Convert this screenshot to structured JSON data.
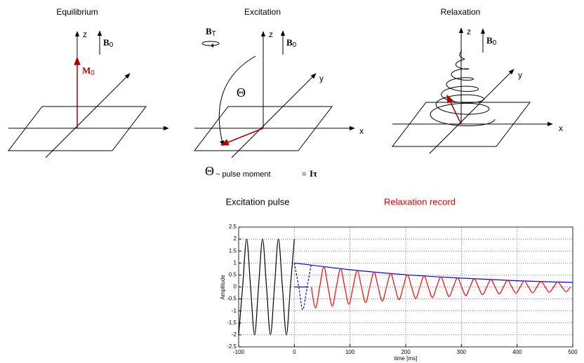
{
  "panels": [
    {
      "title": "Equilibrium",
      "axes": {
        "z": "z"
      },
      "field": {
        "symbol": "B",
        "subscript": "0"
      },
      "magnetization": {
        "symbol": "M",
        "subscript": "0"
      }
    },
    {
      "title": "Excitation",
      "axes": {
        "x": "x",
        "y": "y",
        "z": "z"
      },
      "field": {
        "symbol": "B",
        "subscript": "0"
      },
      "pulse_field": {
        "symbol": "B",
        "subscript": "T"
      },
      "angle": "Θ"
    },
    {
      "title": "Relaxation",
      "axes": {
        "x": "x",
        "y": "y",
        "z": "z"
      },
      "field": {
        "symbol": "B",
        "subscript": "0"
      }
    }
  ],
  "formula": {
    "angle": "Θ",
    "relation": "~ pulse moment",
    "equals": "=",
    "product": "Iτ"
  },
  "chart_labels": {
    "left": "Excitation pulse",
    "right": "Relaxation record"
  },
  "chart_data": {
    "type": "line",
    "x_label": "time [ms]",
    "y_label": "Amplitude",
    "xlim": [
      -100,
      500
    ],
    "ylim": [
      -2.5,
      2.5
    ],
    "xticks": [
      -100,
      0,
      100,
      200,
      300,
      400,
      500
    ],
    "yticks": [
      -2.5,
      -2,
      -1.5,
      -1,
      -0.5,
      0,
      0.5,
      1,
      1.5,
      2,
      2.5
    ],
    "grid": true,
    "series": [
      {
        "color": "#000000",
        "dash": false,
        "x": [
          -100,
          -92.9,
          -85.7,
          -78.6,
          -71.4,
          -64.3,
          -57.1,
          -50,
          -42.9,
          -35.7,
          -28.6,
          -21.4,
          -14.3,
          -7.1,
          0
        ],
        "values": [
          -2,
          0,
          2,
          0,
          -2,
          0,
          2,
          0,
          -2,
          0,
          2,
          0,
          -2,
          0,
          2
        ]
      },
      {
        "color": "#0000ff",
        "dash": true,
        "x": [
          0,
          8,
          15,
          23,
          30
        ],
        "values": [
          1,
          0,
          -0.95,
          0,
          0.9
        ]
      },
      {
        "color": "#0000ff",
        "dash": false,
        "x": [
          0,
          25
        ],
        "values": [
          0,
          0
        ]
      },
      {
        "color": "#0000ff",
        "dash": false,
        "x": [
          0,
          100,
          200,
          300,
          400,
          500
        ],
        "values": [
          1,
          0.72,
          0.51,
          0.37,
          0.26,
          0.19
        ]
      },
      {
        "color": "#ff0000",
        "dash": false,
        "x": [
          30.5,
          38,
          45.5,
          53,
          60.5,
          68,
          75.5,
          83,
          90.5,
          98,
          105.5,
          113,
          120.5,
          128,
          135.5,
          143,
          150.5,
          158,
          165.5,
          173,
          180.5,
          188,
          195.5,
          203,
          210.5,
          218,
          225.5,
          233,
          240.5,
          248,
          255.5,
          263,
          270.5,
          278,
          285.5,
          293,
          300.5,
          308,
          315.5,
          323,
          330.5,
          338,
          345.5,
          353,
          360.5,
          368,
          375.5,
          383,
          390.5,
          398,
          405.5,
          413,
          420.5,
          428,
          435.5,
          443,
          450.5,
          458,
          465.5,
          473,
          480.5,
          488,
          495.5
        ],
        "values": [
          0,
          -0.88,
          0,
          0.84,
          0,
          -0.8,
          0,
          0.76,
          0,
          -0.72,
          0,
          0.69,
          0,
          -0.65,
          0,
          0.62,
          0,
          -0.59,
          0,
          0.56,
          0,
          -0.53,
          0,
          0.51,
          0,
          -0.48,
          0,
          0.46,
          0,
          -0.44,
          0,
          0.42,
          0,
          -0.4,
          0,
          0.38,
          0,
          -0.36,
          0,
          0.34,
          0,
          -0.32,
          0,
          0.31,
          0,
          -0.29,
          0,
          0.28,
          0,
          -0.26,
          0,
          0.25,
          0,
          -0.24,
          0,
          0.23,
          0,
          -0.22,
          0,
          0.21,
          0,
          -0.2,
          0
        ]
      }
    ]
  }
}
